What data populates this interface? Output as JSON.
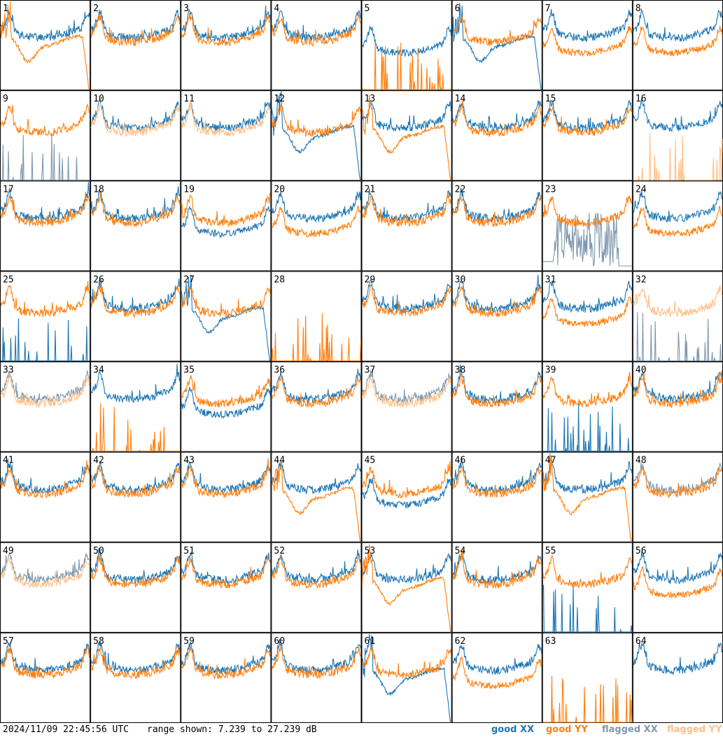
{
  "chart_data": {
    "type": "line",
    "layout": "8x8 grid of small multiples",
    "panels": [
      "1",
      "2",
      "3",
      "4",
      "5",
      "6",
      "7",
      "8",
      "9",
      "10",
      "11",
      "12",
      "13",
      "14",
      "15",
      "16",
      "17",
      "18",
      "19",
      "20",
      "21",
      "22",
      "23",
      "24",
      "25",
      "26",
      "27",
      "28",
      "29",
      "30",
      "31",
      "32",
      "33",
      "34",
      "35",
      "36",
      "37",
      "38",
      "39",
      "40",
      "41",
      "42",
      "43",
      "44",
      "45",
      "46",
      "47",
      "48",
      "49",
      "50",
      "51",
      "52",
      "53",
      "54",
      "55",
      "56",
      "57",
      "58",
      "59",
      "60",
      "61",
      "62",
      "63",
      "64"
    ],
    "ylim": [
      7.239,
      27.239
    ],
    "units": "dB",
    "series": [
      {
        "name": "good XX",
        "color": "#1f77b4"
      },
      {
        "name": "good YY",
        "color": "#ff7f0e"
      },
      {
        "name": "flagged XX",
        "color": "#7f98ae"
      },
      {
        "name": "flagged YY",
        "color": "#ffbf87"
      }
    ],
    "panel_styles": {
      "1": {
        "x": "good",
        "y": "dip"
      },
      "5": {
        "x": "drop",
        "y": "spikes"
      },
      "6": {
        "x": "dip",
        "y": "good"
      },
      "7": {
        "x": "good",
        "y": "drop"
      },
      "8": {
        "x": "good",
        "y": "drop"
      },
      "9": {
        "x": "fspikes",
        "y": "good"
      },
      "10": {
        "x": "good",
        "y": "flagged"
      },
      "11": {
        "x": "good",
        "y": "flagged"
      },
      "12": {
        "x": "dip",
        "y": "good"
      },
      "13": {
        "x": "good",
        "y": "dip"
      },
      "16": {
        "x": "good",
        "y": "fspikes"
      },
      "19": {
        "x": "drop",
        "y": "good"
      },
      "20": {
        "x": "good",
        "y": "drop"
      },
      "23": {
        "x": "fnoise",
        "y": "good"
      },
      "24": {
        "x": "good",
        "y": "drop"
      },
      "25": {
        "x": "spikes",
        "y": "good"
      },
      "27": {
        "x": "dip",
        "y": "good"
      },
      "28": {
        "x": "none",
        "y": "spikes"
      },
      "31": {
        "x": "good",
        "y": "drop"
      },
      "32": {
        "x": "fspikes",
        "y": "flagged"
      },
      "33": {
        "x": "flagged",
        "y": "flagged"
      },
      "34": {
        "x": "good",
        "y": "spikes"
      },
      "35": {
        "x": "drop",
        "y": "good"
      },
      "37": {
        "x": "flagged",
        "y": "flagged"
      },
      "39": {
        "x": "spikes",
        "y": "good"
      },
      "44": {
        "x": "good",
        "y": "dip"
      },
      "45": {
        "x": "drop",
        "y": "good"
      },
      "47": {
        "x": "good",
        "y": "dip"
      },
      "48": {
        "x": "flagged",
        "y": "good"
      },
      "49": {
        "x": "flagged",
        "y": "flagged"
      },
      "53": {
        "x": "good",
        "y": "dip"
      },
      "55": {
        "x": "spikes",
        "y": "good"
      },
      "56": {
        "x": "good",
        "y": "drop"
      },
      "61": {
        "x": "dip",
        "y": "good"
      },
      "62": {
        "x": "good",
        "y": "drop"
      },
      "63": {
        "x": "none",
        "y": "spikes"
      },
      "64": {
        "x": "good",
        "y": "none"
      }
    }
  },
  "footer": {
    "timestamp": "2024/11/09 22:45:56 UTC",
    "range": "range shown: 7.239 to 27.239 dB",
    "legend": [
      "good XX",
      "good YY",
      "flagged XX",
      "flagged YY"
    ]
  }
}
